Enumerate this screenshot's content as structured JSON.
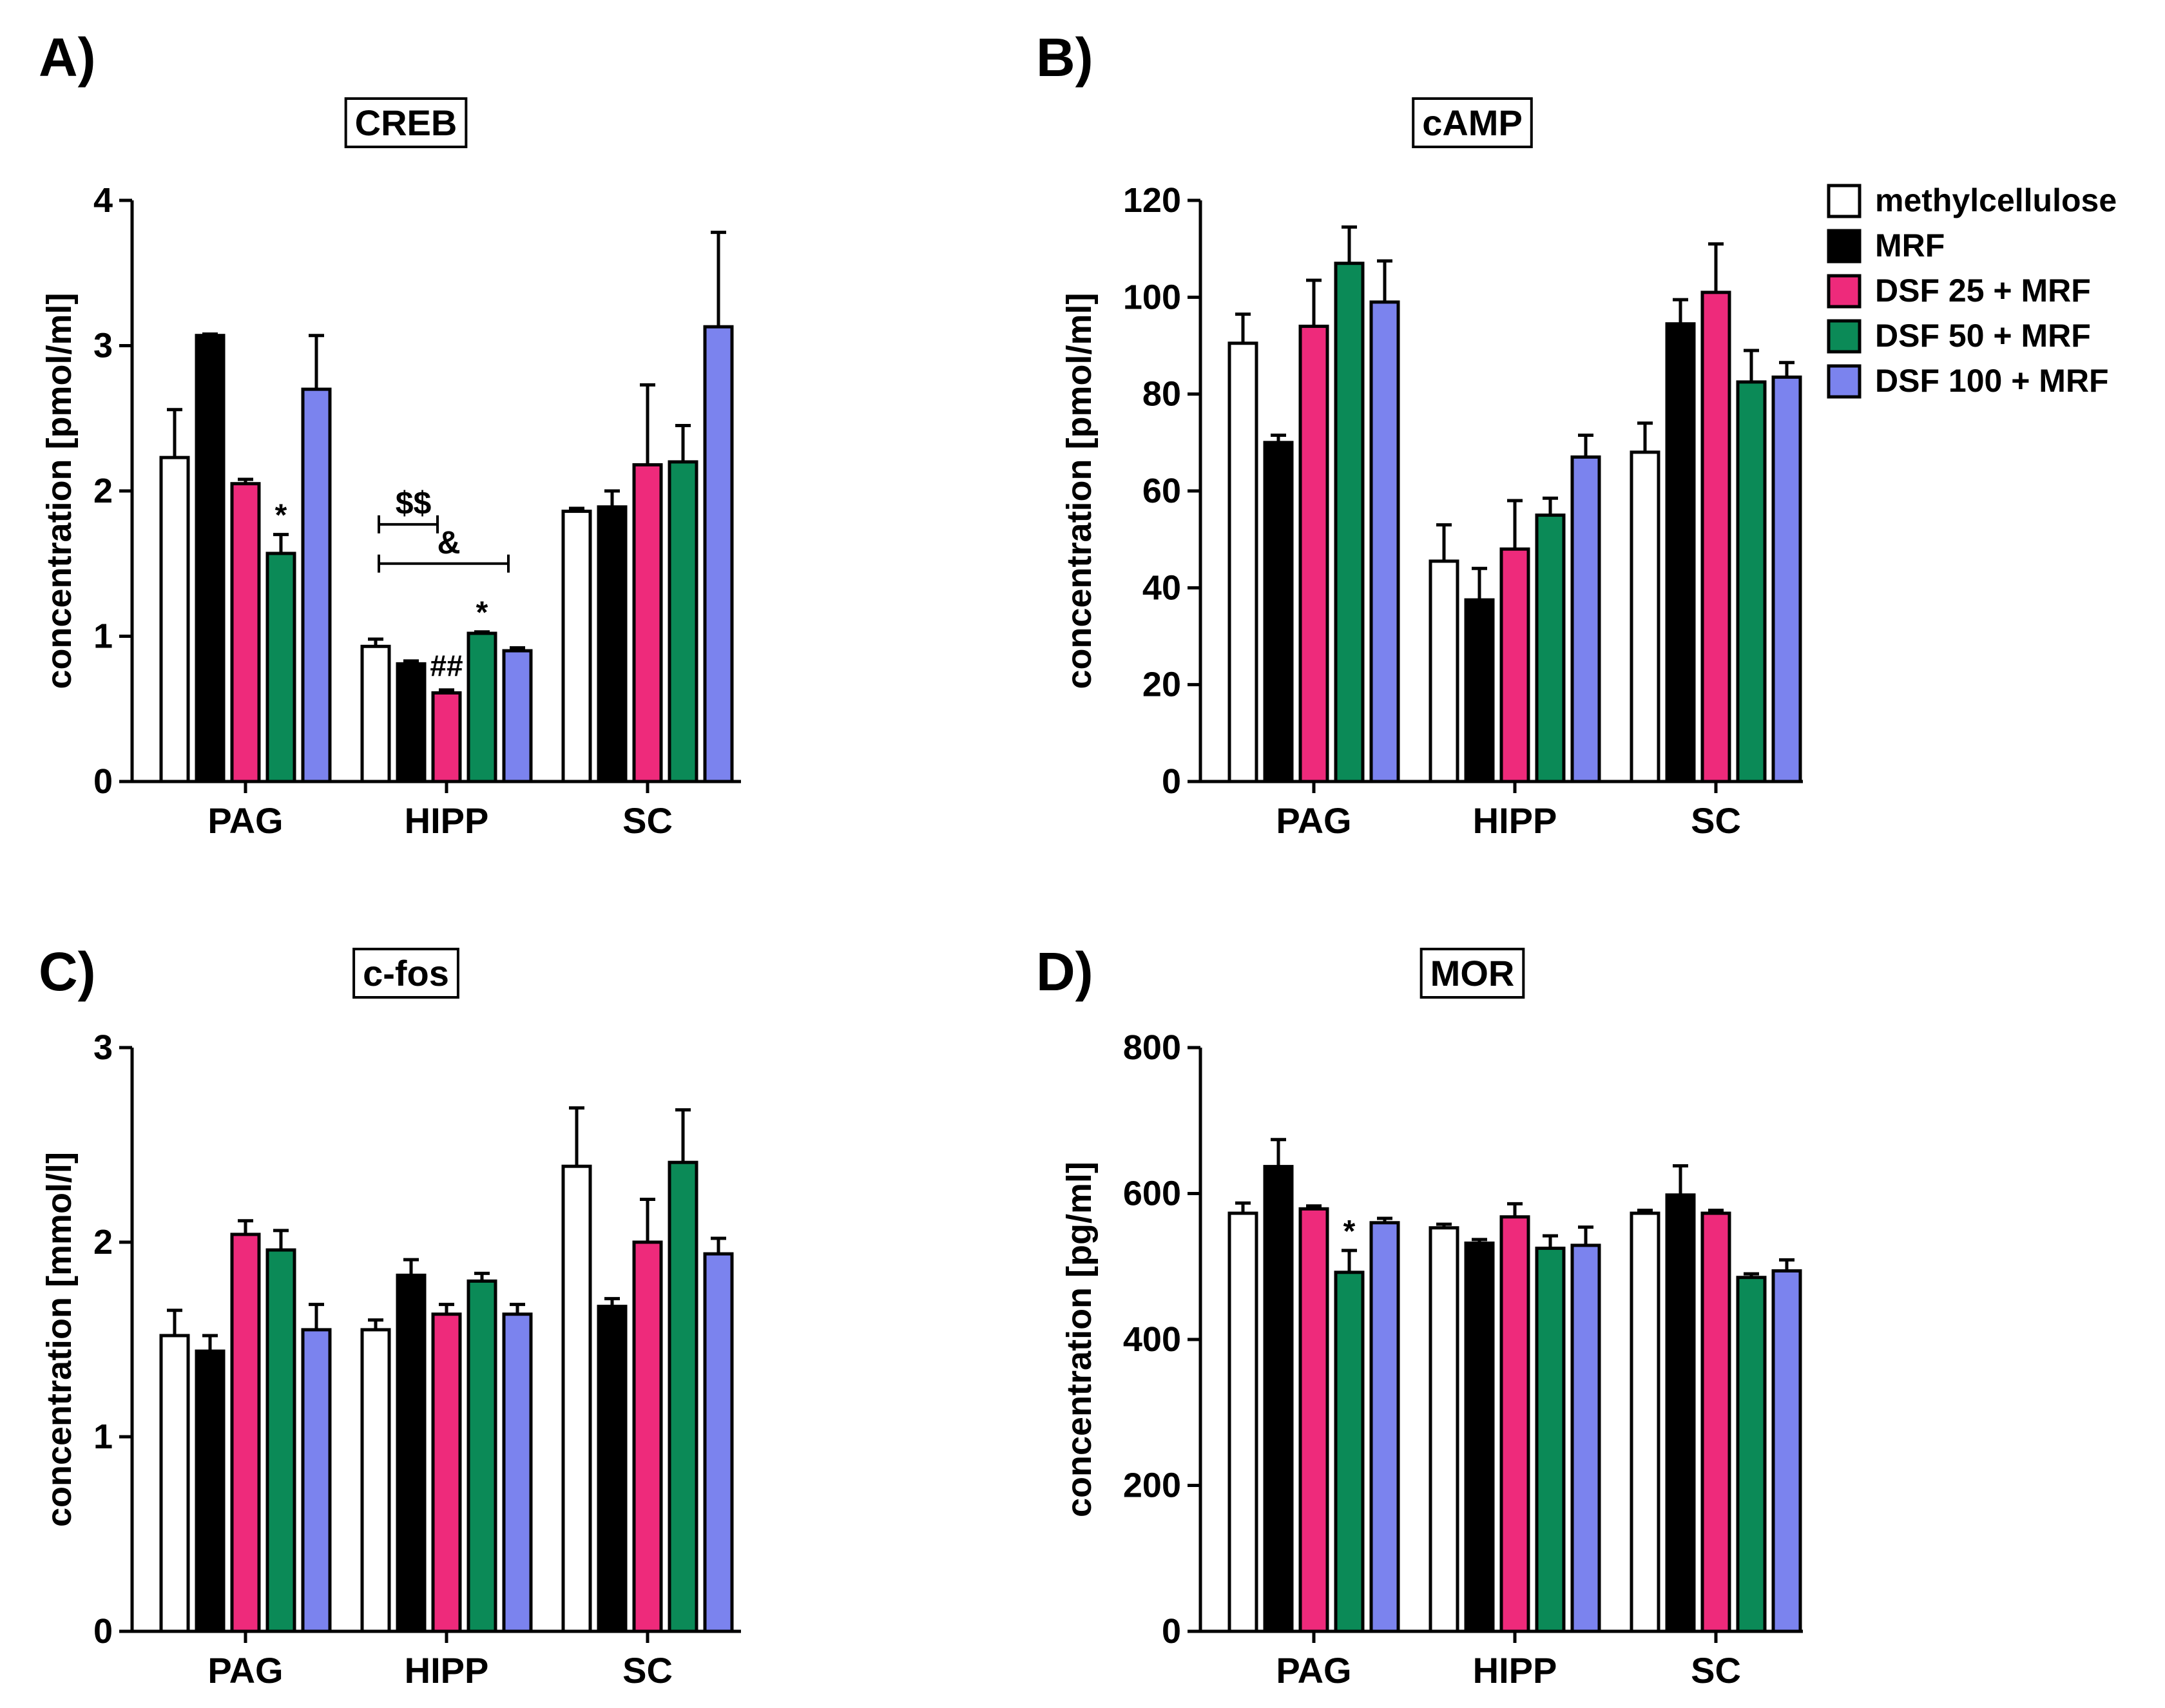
{
  "colors": {
    "methylcellulose": "#ffffff",
    "MRF": "#000000",
    "DSF 25 + MRF": "#ee2a7b",
    "DSF 50 + MRF": "#0b8a57",
    "DSF 100 + MRF": "#7b83ee"
  },
  "legend": {
    "items": [
      "methylcellulose",
      "MRF",
      "DSF 25 + MRF",
      "DSF 50 + MRF",
      "DSF 100 + MRF"
    ]
  },
  "chart_data": [
    {
      "type": "bar",
      "panel_label": "A)",
      "title": "CREB",
      "ylabel": "concentration [pmol/ml]",
      "xlabel": "",
      "ylim": [
        0,
        4
      ],
      "yticks": [
        "0",
        "1",
        "2",
        "3",
        "4"
      ],
      "categories": [
        "PAG",
        "HIPP",
        "SC"
      ],
      "series": [
        {
          "name": "methylcellulose",
          "values": [
            2.23,
            0.93,
            1.86
          ],
          "errors": [
            0.33,
            0.05,
            0.02
          ]
        },
        {
          "name": "MRF",
          "values": [
            3.07,
            0.81,
            1.89
          ],
          "errors": [
            0.01,
            0.02,
            0.11
          ]
        },
        {
          "name": "DSF 25 + MRF",
          "values": [
            2.05,
            0.61,
            2.18
          ],
          "errors": [
            0.03,
            0.02,
            0.55
          ]
        },
        {
          "name": "DSF 50 + MRF",
          "values": [
            1.57,
            1.02,
            2.2
          ],
          "errors": [
            0.13,
            0.01,
            0.25
          ]
        },
        {
          "name": "DSF 100 + MRF",
          "values": [
            2.7,
            0.9,
            3.13
          ],
          "errors": [
            0.37,
            0.02,
            0.65
          ]
        }
      ],
      "annotations": [
        {
          "text": "*",
          "category": 0,
          "series": 3
        },
        {
          "text": "##",
          "category": 1,
          "series": 2
        },
        {
          "text": "*",
          "category": 1,
          "series": 3
        }
      ],
      "brackets": [
        {
          "text": "$$",
          "category": 1,
          "from_series": 0,
          "to_series": 1,
          "level": 1.77
        },
        {
          "text": "&",
          "category": 1,
          "from_series": 0,
          "to_series": 3,
          "level": 1.5
        }
      ]
    },
    {
      "type": "bar",
      "panel_label": "B)",
      "title": "cAMP",
      "ylabel": "concentration [pmol/ml]",
      "xlabel": "",
      "ylim": [
        0,
        120
      ],
      "yticks": [
        "0",
        "20",
        "40",
        "60",
        "80",
        "100",
        "120"
      ],
      "categories": [
        "PAG",
        "HIPP",
        "SC"
      ],
      "series": [
        {
          "name": "methylcellulose",
          "values": [
            90.5,
            45.5,
            68
          ],
          "errors": [
            6,
            7.5,
            6
          ]
        },
        {
          "name": "MRF",
          "values": [
            70,
            37.5,
            94.5
          ],
          "errors": [
            1.5,
            6.5,
            5
          ]
        },
        {
          "name": "DSF 25 + MRF",
          "values": [
            94,
            48,
            101
          ],
          "errors": [
            9.5,
            10,
            10
          ]
        },
        {
          "name": "DSF 50 + MRF",
          "values": [
            107,
            55,
            82.5
          ],
          "errors": [
            7.5,
            3.5,
            6.5
          ]
        },
        {
          "name": "DSF 100 + MRF",
          "values": [
            99,
            67,
            83.5
          ],
          "errors": [
            8.5,
            4.5,
            3
          ]
        }
      ],
      "annotations": [],
      "brackets": []
    },
    {
      "type": "bar",
      "panel_label": "C)",
      "title": "c-fos",
      "ylabel": "concentration [mmol/l]",
      "xlabel": "",
      "ylim": [
        0,
        3
      ],
      "yticks": [
        "0",
        "1",
        "2",
        "3"
      ],
      "categories": [
        "PAG",
        "HIPP",
        "SC"
      ],
      "series": [
        {
          "name": "methylcellulose",
          "values": [
            1.52,
            1.55,
            2.39
          ],
          "errors": [
            0.13,
            0.05,
            0.3
          ]
        },
        {
          "name": "MRF",
          "values": [
            1.44,
            1.83,
            1.67
          ],
          "errors": [
            0.08,
            0.08,
            0.04
          ]
        },
        {
          "name": "DSF 25 + MRF",
          "values": [
            2.04,
            1.63,
            2.0
          ],
          "errors": [
            0.07,
            0.05,
            0.22
          ]
        },
        {
          "name": "DSF 50 + MRF",
          "values": [
            1.96,
            1.8,
            2.41
          ],
          "errors": [
            0.1,
            0.04,
            0.27
          ]
        },
        {
          "name": "DSF 100 + MRF",
          "values": [
            1.55,
            1.63,
            1.94
          ],
          "errors": [
            0.13,
            0.05,
            0.08
          ]
        }
      ],
      "annotations": [],
      "brackets": []
    },
    {
      "type": "bar",
      "panel_label": "D)",
      "title": "MOR",
      "ylabel": "concentration [pg/ml]",
      "xlabel": "",
      "ylim": [
        0,
        800
      ],
      "yticks": [
        "0",
        "200",
        "400",
        "600",
        "800"
      ],
      "categories": [
        "PAG",
        "HIPP",
        "SC"
      ],
      "series": [
        {
          "name": "methylcellulose",
          "values": [
            573,
            553,
            573
          ],
          "errors": [
            14,
            5,
            4
          ]
        },
        {
          "name": "MRF",
          "values": [
            637,
            532,
            598
          ],
          "errors": [
            37,
            5,
            40
          ]
        },
        {
          "name": "DSF 25 + MRF",
          "values": [
            579,
            568,
            573
          ],
          "errors": [
            4,
            18,
            4
          ]
        },
        {
          "name": "DSF 50 + MRF",
          "values": [
            492,
            525,
            485
          ],
          "errors": [
            30,
            17,
            5
          ]
        },
        {
          "name": "DSF 100 + MRF",
          "values": [
            560,
            529,
            494
          ],
          "errors": [
            6,
            25,
            15
          ]
        }
      ],
      "annotations": [
        {
          "text": "*",
          "category": 0,
          "series": 3
        }
      ],
      "brackets": []
    }
  ]
}
